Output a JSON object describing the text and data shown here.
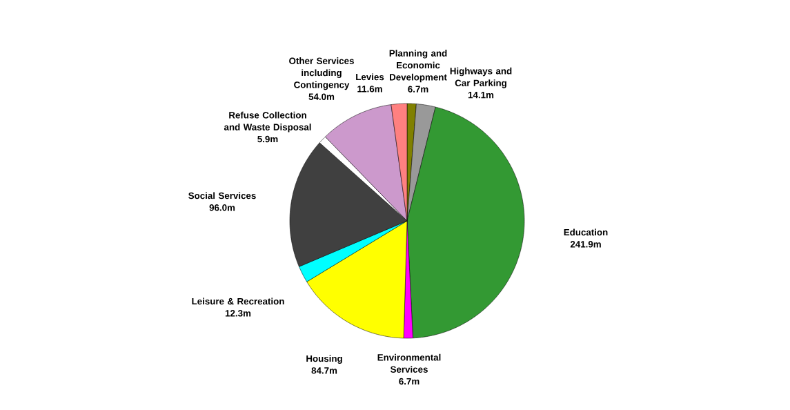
{
  "chart_data": {
    "type": "pie",
    "categories": [
      "Planning and Economic Development",
      "Highways and Car Parking",
      "Education",
      "Environmental Services",
      "Housing",
      "Leisure & Recreation",
      "Social Services",
      "Refuse Collection and Waste Disposal",
      "Other Services including Contingency",
      "Levies"
    ],
    "values": [
      6.7,
      14.1,
      241.9,
      6.7,
      84.7,
      12.3,
      96.0,
      5.9,
      54.0,
      11.6
    ],
    "value_labels": [
      "6.7m",
      "14.1m",
      "241.9m",
      "6.7m",
      "84.7m",
      "12.3m",
      "96.0m",
      "5.9m",
      "54.0m",
      "11.6m"
    ],
    "colors": [
      "#808000",
      "#999999",
      "#339933",
      "#ff00ff",
      "#ffff00",
      "#00ffff",
      "#404040",
      "#ffffff",
      "#cc99cc",
      "#ff8080"
    ]
  }
}
